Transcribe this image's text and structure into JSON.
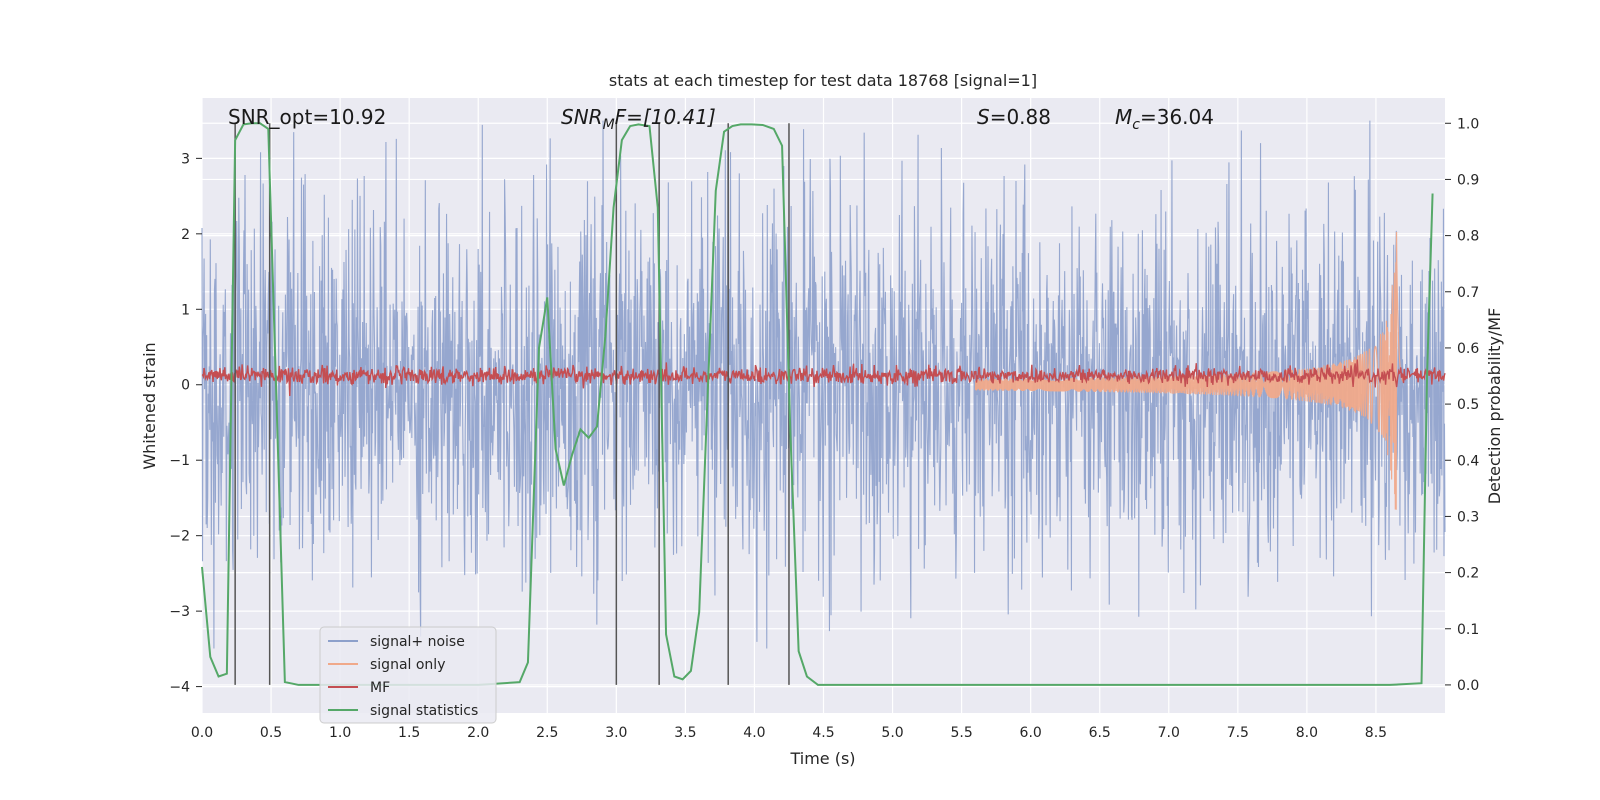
{
  "chart_data": {
    "type": "line",
    "title": "stats at each timestep for test data 18768 [signal=1]",
    "xlabel": "Time (s)",
    "ylabel_left": "Whitened strain",
    "ylabel_right": "Detection probability/MF",
    "xlim": [
      0,
      9.0
    ],
    "ylim_left": [
      -4.35,
      3.8
    ],
    "ylim_right": [
      -0.05,
      1.045
    ],
    "x_ticks": [
      0.0,
      0.5,
      1.0,
      1.5,
      2.0,
      2.5,
      3.0,
      3.5,
      4.0,
      4.5,
      5.0,
      5.5,
      6.0,
      6.5,
      7.0,
      7.5,
      8.0,
      8.5
    ],
    "x_tick_labels": [
      "0.0",
      "0.5",
      "1.0",
      "1.5",
      "2.0",
      "2.5",
      "3.0",
      "3.5",
      "4.0",
      "4.5",
      "5.0",
      "5.5",
      "6.0",
      "6.5",
      "7.0",
      "7.5",
      "8.0",
      "8.5"
    ],
    "y_left_ticks": [
      3,
      2,
      1,
      0,
      -1,
      -2,
      -3,
      -4
    ],
    "y_left_tick_labels": [
      "3",
      "2",
      "1",
      "0",
      "−1",
      "−2",
      "−3",
      "−4"
    ],
    "y_right_ticks": [
      1.0,
      0.9,
      0.8,
      0.7,
      0.6,
      0.5,
      0.4,
      0.3,
      0.2,
      0.1,
      0.0
    ],
    "y_right_tick_labels": [
      "1.0",
      "0.9",
      "0.8",
      "0.7",
      "0.6",
      "0.5",
      "0.4",
      "0.3",
      "0.2",
      "0.1",
      "0.0"
    ],
    "grid": true,
    "annotations": {
      "snr_opt": "SNR_opt=10.92",
      "snr_mf_prefix": "SNR",
      "snr_mf_sub": "M",
      "snr_mf_suffix": "F=[10.41]",
      "s_prefix": "S",
      "s_suffix": "=0.88",
      "mc_prefix": "M",
      "mc_sub": "c",
      "mc_suffix": "=36.04"
    },
    "vertical_lines_x": [
      0.24,
      0.49,
      3.0,
      3.31,
      3.81,
      4.25
    ],
    "legend": {
      "placement": "lower-left",
      "entries": [
        {
          "label": "signal+ noise",
          "color": "#8da0cb"
        },
        {
          "label": "signal only",
          "color": "#f0a98a"
        },
        {
          "label": "MF",
          "color": "#c44e52"
        },
        {
          "label": "signal statistics",
          "color": "#55a868"
        }
      ]
    },
    "series": [
      {
        "label": "signal statistics",
        "axis": "right",
        "color": "#55a868",
        "x": [
          0.0,
          0.06,
          0.12,
          0.18,
          0.24,
          0.3,
          0.36,
          0.42,
          0.48,
          0.54,
          0.6,
          0.7,
          0.9,
          1.2,
          1.6,
          2.0,
          2.3,
          2.36,
          2.44,
          2.5,
          2.56,
          2.62,
          2.68,
          2.74,
          2.8,
          2.86,
          2.92,
          2.98,
          3.04,
          3.1,
          3.16,
          3.24,
          3.3,
          3.36,
          3.42,
          3.48,
          3.54,
          3.6,
          3.66,
          3.72,
          3.78,
          3.84,
          3.9,
          3.98,
          4.06,
          4.14,
          4.2,
          4.26,
          4.32,
          4.38,
          4.46,
          4.6,
          5.0,
          6.0,
          7.0,
          8.0,
          8.6,
          8.83,
          8.87,
          8.91
        ],
        "y": [
          0.21,
          0.05,
          0.015,
          0.02,
          0.97,
          0.998,
          1.0,
          1.0,
          0.99,
          0.5,
          0.005,
          0.0,
          0.0,
          0.0,
          0.0,
          0.0,
          0.005,
          0.04,
          0.6,
          0.69,
          0.42,
          0.355,
          0.41,
          0.455,
          0.44,
          0.46,
          0.62,
          0.85,
          0.97,
          0.995,
          0.998,
          0.995,
          0.85,
          0.09,
          0.015,
          0.01,
          0.025,
          0.13,
          0.51,
          0.88,
          0.985,
          0.995,
          0.998,
          0.998,
          0.997,
          0.99,
          0.96,
          0.45,
          0.06,
          0.015,
          0.0,
          0.0,
          0.0,
          0.0,
          0.0,
          0.0,
          0.0,
          0.003,
          0.55,
          0.875
        ]
      },
      {
        "label": "signal only",
        "axis": "left",
        "color": "#f0a98a",
        "description_envelope": {
          "start_x": 5.6,
          "end_x": 8.7,
          "peak_x": 8.65,
          "peak_amplitude": 2.6
        }
      },
      {
        "label": "signal+ noise",
        "axis": "left",
        "color": "#8da0cb",
        "typical_amplitude": 1.2,
        "max_amplitude": 3.5
      },
      {
        "label": "MF",
        "axis": "left",
        "color": "#c44e52",
        "mean": 0.12,
        "amplitude": 0.08
      }
    ]
  }
}
